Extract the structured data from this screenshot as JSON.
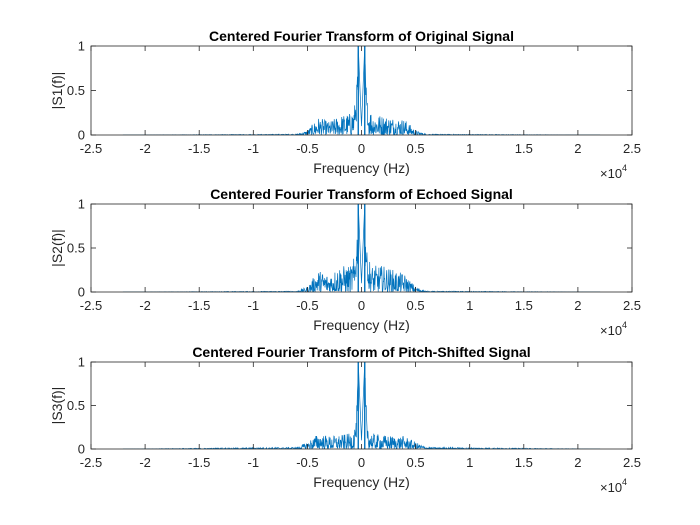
{
  "chart_data": [
    {
      "type": "line",
      "title": "Centered Fourier Transform of Original Signal",
      "xlabel": "Frequency (Hz)",
      "ylabel": "|S1(f)|",
      "x_multiplier": {
        "base": "×10",
        "exp": "4"
      },
      "xlim": [
        -25000,
        25000
      ],
      "ylim": [
        0,
        1
      ],
      "xticks": [
        -25000,
        -20000,
        -15000,
        -10000,
        -5000,
        0,
        5000,
        10000,
        15000,
        20000,
        25000
      ],
      "xtick_labels": [
        "-2.5",
        "-2",
        "-1.5",
        "-1",
        "-0.5",
        "0",
        "0.5",
        "1",
        "1.5",
        "2",
        "2.5"
      ],
      "yticks": [
        0,
        0.5,
        1
      ],
      "ytick_labels": [
        "0",
        "0.5",
        "1"
      ],
      "color": "#0072BD",
      "series": [
        {
          "x": [
            -22050,
            -6000,
            -5000,
            -4000,
            -3000,
            -2000,
            -1000,
            -500,
            -300,
            0,
            300,
            500,
            1000,
            2000,
            3000,
            4000,
            5000,
            6000,
            22050
          ],
          "y": [
            0,
            0.01,
            0.05,
            0.2,
            0.15,
            0.22,
            0.25,
            0.4,
            1.0,
            0.1,
            1.0,
            0.4,
            0.25,
            0.22,
            0.2,
            0.18,
            0.05,
            0.01,
            0
          ]
        }
      ]
    },
    {
      "type": "line",
      "title": "Centered Fourier Transform of Echoed Signal",
      "xlabel": "Frequency (Hz)",
      "ylabel": "|S2(f)|",
      "x_multiplier": {
        "base": "×10",
        "exp": "4"
      },
      "xlim": [
        -25000,
        25000
      ],
      "ylim": [
        0,
        1
      ],
      "xticks": [
        -25000,
        -20000,
        -15000,
        -10000,
        -5000,
        0,
        5000,
        10000,
        15000,
        20000,
        25000
      ],
      "xtick_labels": [
        "-2.5",
        "-2",
        "-1.5",
        "-1",
        "-0.5",
        "0",
        "0.5",
        "1",
        "1.5",
        "2",
        "2.5"
      ],
      "yticks": [
        0,
        0.5,
        1
      ],
      "ytick_labels": [
        "0",
        "0.5",
        "1"
      ],
      "color": "#0072BD",
      "series": [
        {
          "x": [
            -22050,
            -6000,
            -5000,
            -4000,
            -3000,
            -2000,
            -1000,
            -500,
            -300,
            0,
            300,
            500,
            1000,
            2000,
            3000,
            4000,
            5000,
            6000,
            22050
          ],
          "y": [
            0,
            0.01,
            0.06,
            0.25,
            0.2,
            0.3,
            0.3,
            0.45,
            1.0,
            0.1,
            1.0,
            0.45,
            0.3,
            0.3,
            0.25,
            0.2,
            0.06,
            0.01,
            0
          ]
        }
      ]
    },
    {
      "type": "line",
      "title": "Centered Fourier Transform of Pitch-Shifted Signal",
      "xlabel": "Frequency (Hz)",
      "ylabel": "|S3(f)|",
      "x_multiplier": {
        "base": "×10",
        "exp": "4"
      },
      "xlim": [
        -25000,
        25000
      ],
      "ylim": [
        0,
        1
      ],
      "xticks": [
        -25000,
        -20000,
        -15000,
        -10000,
        -5000,
        0,
        5000,
        10000,
        15000,
        20000,
        25000
      ],
      "xtick_labels": [
        "-2.5",
        "-2",
        "-1.5",
        "-1",
        "-0.5",
        "0",
        "0.5",
        "1",
        "1.5",
        "2",
        "2.5"
      ],
      "yticks": [
        0,
        0.5,
        1
      ],
      "ytick_labels": [
        "0",
        "0.5",
        "1"
      ],
      "color": "#0072BD",
      "series": [
        {
          "x": [
            -22050,
            -6000,
            -5000,
            -4000,
            -3000,
            -2000,
            -1000,
            -500,
            -300,
            0,
            300,
            500,
            1000,
            2000,
            3000,
            4000,
            5000,
            6000,
            22050
          ],
          "y": [
            0,
            0.02,
            0.08,
            0.18,
            0.15,
            0.16,
            0.18,
            0.3,
            1.0,
            0.1,
            1.0,
            0.3,
            0.18,
            0.16,
            0.15,
            0.15,
            0.08,
            0.02,
            0
          ]
        }
      ]
    }
  ]
}
